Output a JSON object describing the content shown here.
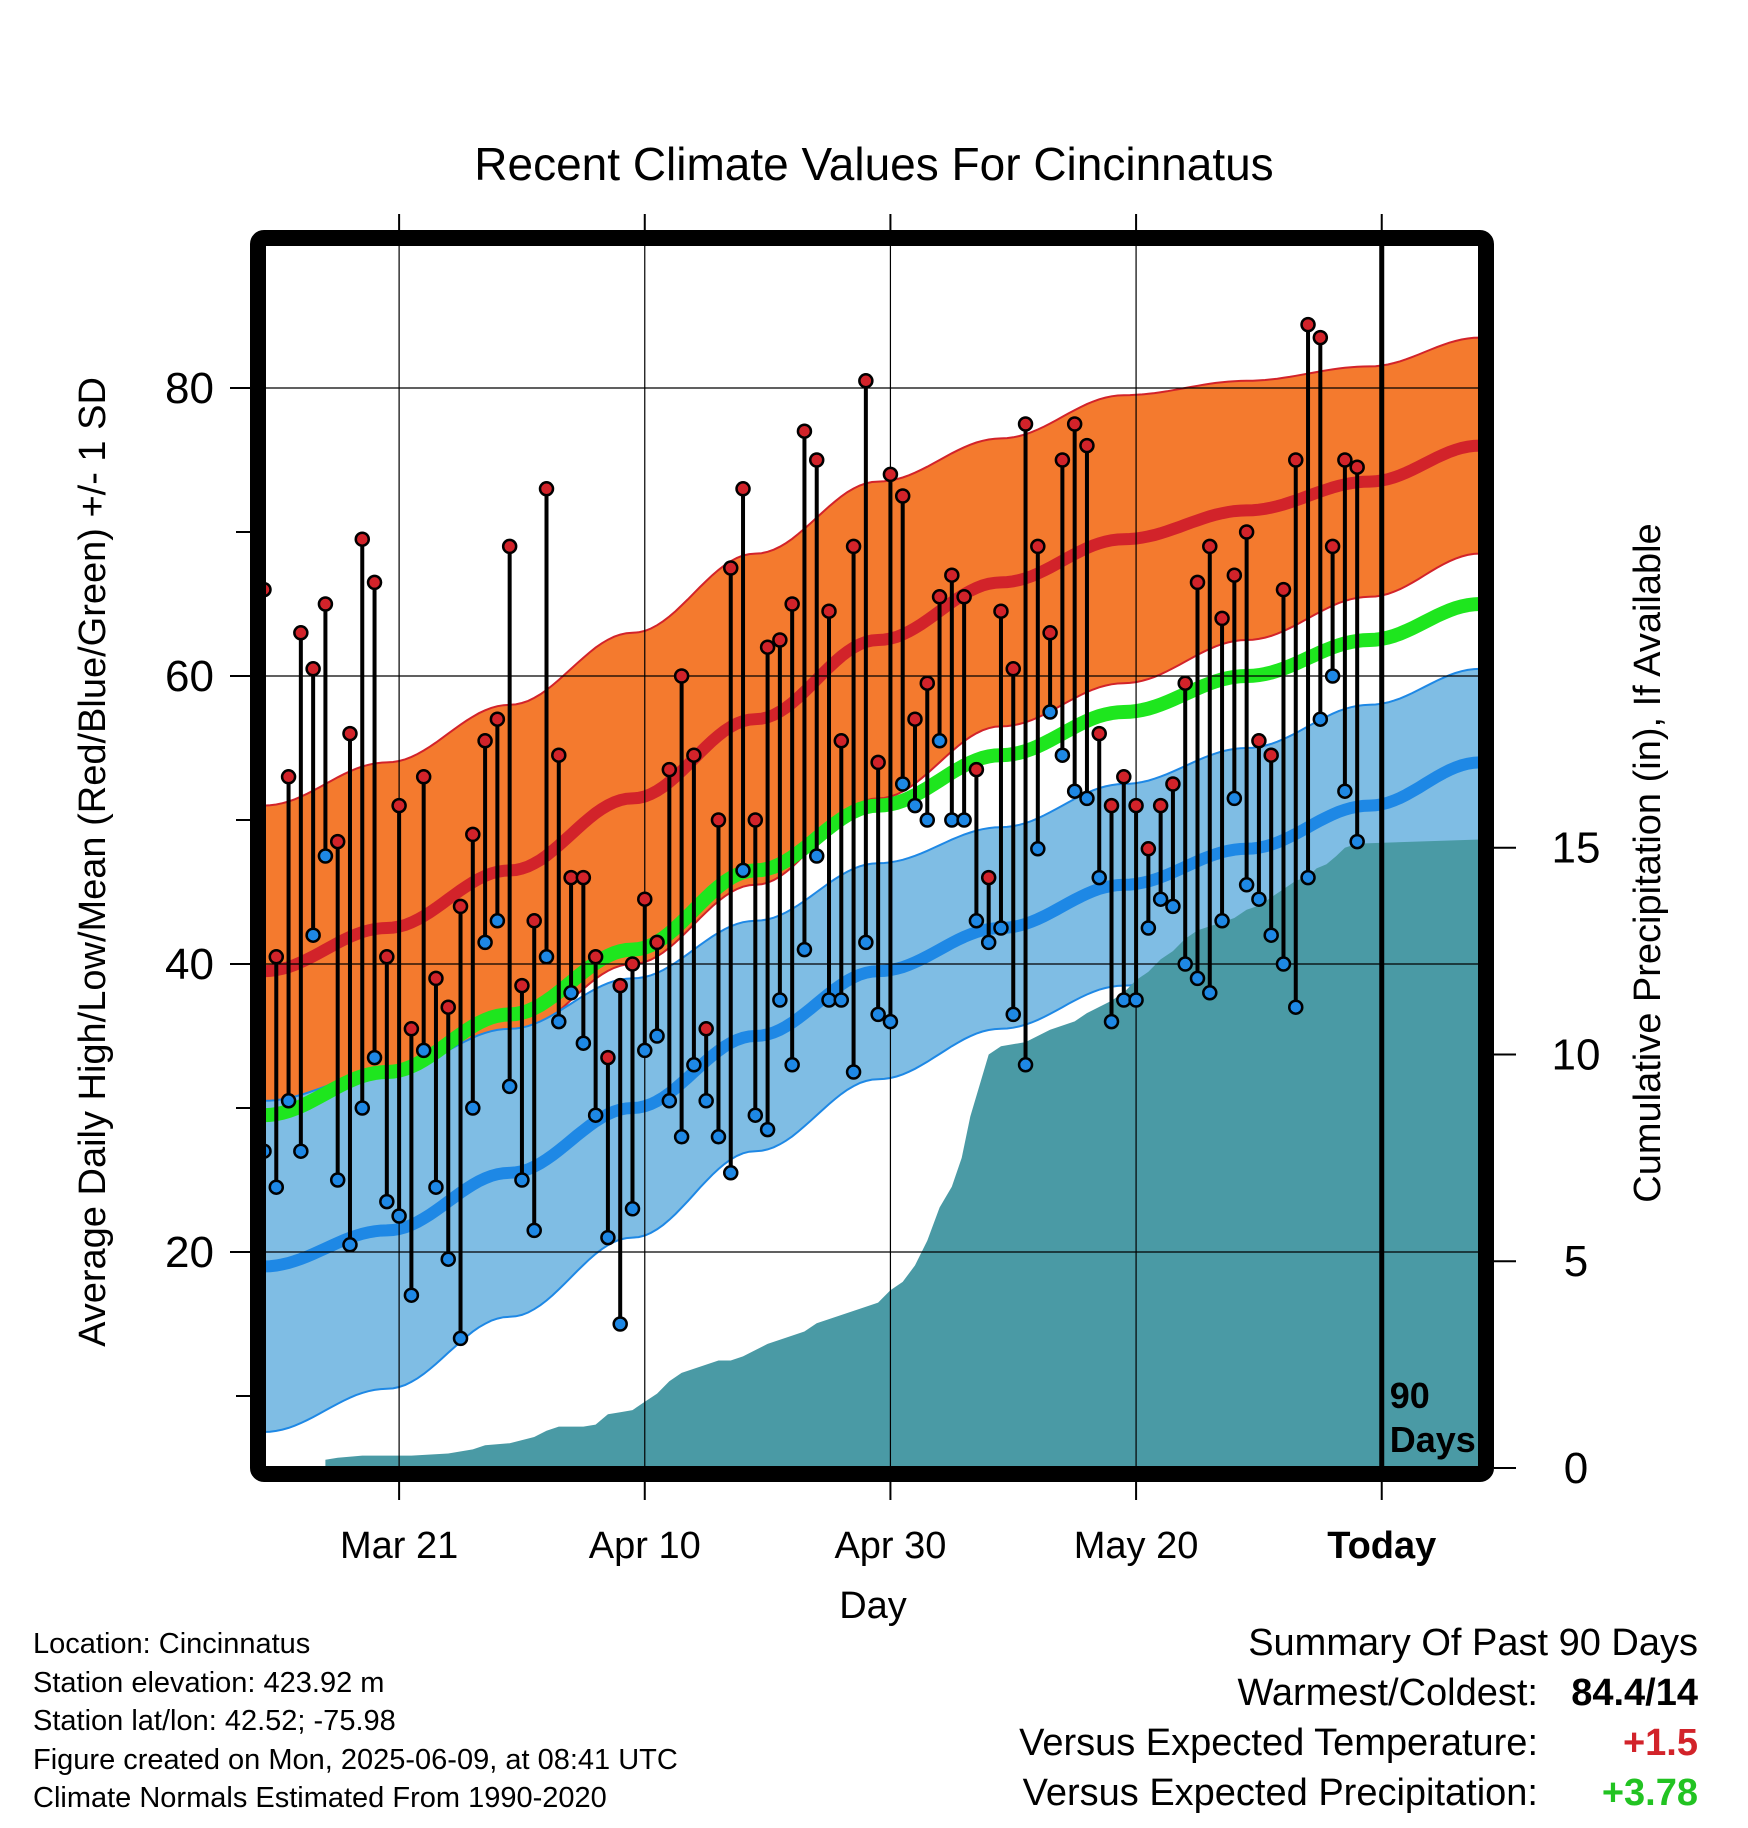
{
  "chart_data": {
    "type": "line",
    "title": "Recent Climate Values For Cincinnatus",
    "xlabel": "Day",
    "ylabel": "Average Daily High/Low/Mean (Red/Blue/Green) +/- 1 SD",
    "y2label": "Cumulative Precipitation (in), If Available",
    "ylim": [
      5,
      90
    ],
    "y2lim": [
      0,
      29.6
    ],
    "xlim": [
      0,
      99
    ],
    "x_ticks": [
      {
        "day": 11,
        "label": "Mar 21"
      },
      {
        "day": 31,
        "label": "Apr 10"
      },
      {
        "day": 51,
        "label": "Apr 30"
      },
      {
        "day": 71,
        "label": "May 20"
      },
      {
        "day": 91,
        "label": "Today"
      }
    ],
    "y_ticks": [
      20,
      40,
      60,
      80
    ],
    "y_minor_ticks": [
      10,
      30,
      50,
      70
    ],
    "y2_ticks": [
      0,
      5,
      10,
      15
    ],
    "grid": true,
    "today_marker": {
      "day": 91,
      "label_line1": "90",
      "label_line2": "Days"
    },
    "normal_high": {
      "days": [
        0,
        10,
        20,
        30,
        40,
        50,
        60,
        70,
        80,
        90,
        99
      ],
      "mean": [
        39.5,
        42.5,
        46.5,
        51.5,
        57,
        62.5,
        66.5,
        69.5,
        71.5,
        73.5,
        76
      ],
      "sd": [
        11.5,
        11.5,
        11.5,
        11.5,
        11.5,
        11,
        10,
        10,
        9,
        8,
        7.5
      ]
    },
    "normal_low": {
      "days": [
        0,
        10,
        20,
        30,
        40,
        50,
        60,
        70,
        80,
        90,
        99
      ],
      "mean": [
        19,
        21.5,
        25.5,
        30,
        35,
        39.5,
        42.5,
        45.5,
        48,
        51,
        54
      ],
      "sd": [
        11.5,
        11,
        10,
        9,
        8,
        7.5,
        7,
        7,
        7,
        7,
        6.5
      ]
    },
    "normal_mean": {
      "days": [
        0,
        10,
        20,
        30,
        40,
        50,
        60,
        70,
        80,
        90,
        99
      ],
      "values": [
        29.5,
        32.5,
        36.5,
        41,
        46.5,
        51,
        54.5,
        57.5,
        60,
        62.5,
        65
      ]
    },
    "daily": {
      "start_day": 0,
      "highs": [
        66,
        40.5,
        53,
        63,
        60.5,
        65,
        48.5,
        56,
        69.5,
        66.5,
        40.5,
        51,
        35.5,
        53,
        39,
        37,
        44,
        49,
        55.5,
        57,
        69,
        38.5,
        43,
        73,
        54.5,
        46,
        46,
        40.5,
        33.5,
        38.5,
        40,
        44.5,
        41.5,
        53.5,
        60,
        54.5,
        35.5,
        50,
        67.5,
        73,
        50,
        62,
        62.5,
        65,
        77,
        75,
        64.5,
        55.5,
        69,
        80.5,
        54,
        74,
        72.5,
        57,
        59.5,
        65.5,
        67,
        65.5,
        53.5,
        46,
        64.5,
        60.5,
        77.5,
        69,
        63,
        75,
        77.5,
        76,
        56,
        51,
        53,
        51,
        48,
        51,
        52.5,
        59.5,
        66.5,
        69,
        64,
        67,
        70,
        55.5,
        54.5,
        66,
        75,
        84.4,
        83.5,
        69,
        75,
        74.5
      ],
      "lows": [
        27,
        24.5,
        30.5,
        27,
        42,
        47.5,
        25,
        20.5,
        30,
        33.5,
        23.5,
        22.5,
        17,
        34,
        24.5,
        19.5,
        14,
        30,
        41.5,
        43,
        31.5,
        25,
        21.5,
        40.5,
        36,
        38,
        34.5,
        29.5,
        21,
        15,
        23,
        34,
        35,
        30.5,
        28,
        33,
        30.5,
        28,
        25.5,
        46.5,
        29.5,
        28.5,
        37.5,
        33,
        41,
        47.5,
        37.5,
        37.5,
        32.5,
        41.5,
        36.5,
        36,
        52.5,
        51,
        50,
        55.5,
        50,
        50,
        43,
        41.5,
        42.5,
        36.5,
        33,
        48,
        57.5,
        54.5,
        52,
        51.5,
        46,
        36,
        37.5,
        37.5,
        42.5,
        44.5,
        44,
        40,
        39,
        38,
        43,
        51.5,
        45.5,
        44.5,
        42,
        40,
        37,
        46,
        57,
        60,
        52,
        48.5
      ]
    },
    "precip": {
      "days": [
        5,
        6,
        8,
        12,
        15,
        17,
        18,
        20,
        22,
        23,
        24,
        25,
        26,
        27,
        28,
        29,
        30,
        31,
        32,
        33,
        34,
        35,
        36,
        37,
        38,
        39,
        40,
        41,
        42,
        44,
        45,
        46,
        48,
        49,
        50,
        51,
        52,
        53,
        54,
        55,
        56,
        56.8,
        57.5,
        59,
        60,
        62,
        64,
        66,
        67,
        69,
        70,
        71,
        72,
        73,
        74,
        75,
        76,
        77,
        78,
        79,
        80,
        81,
        82,
        83,
        84,
        85,
        85.7,
        86.5,
        87.3,
        88,
        89,
        99
      ],
      "values": [
        0.2,
        0.25,
        0.3,
        0.3,
        0.35,
        0.45,
        0.55,
        0.6,
        0.75,
        0.9,
        1.0,
        1.0,
        1.0,
        1.05,
        1.3,
        1.35,
        1.4,
        1.6,
        1.8,
        2.1,
        2.3,
        2.4,
        2.5,
        2.6,
        2.6,
        2.7,
        2.85,
        3.0,
        3.1,
        3.3,
        3.5,
        3.6,
        3.8,
        3.9,
        4.0,
        4.3,
        4.5,
        4.9,
        5.5,
        6.3,
        6.8,
        7.5,
        8.5,
        10.0,
        10.2,
        10.3,
        10.6,
        10.8,
        11.0,
        11.3,
        11.5,
        11.8,
        12.0,
        12.3,
        12.5,
        12.8,
        13.0,
        13.1,
        13.2,
        13.3,
        13.5,
        13.6,
        13.8,
        14.0,
        14.2,
        14.3,
        14.5,
        14.6,
        14.8,
        15.0,
        15.1,
        15.2
      ]
    },
    "colors": {
      "high_band": "#F47A2E",
      "high_line": "#D2232A",
      "low_band": "#7FBDE4",
      "low_line": "#1E88E5",
      "mean_line": "#1EE61E",
      "precip": "#4A9AA5",
      "high_dot": "#D2232A",
      "low_dot": "#1E88E5"
    }
  },
  "info": {
    "location": "Location: Cincinnatus",
    "elevation": "Station elevation: 423.92 m",
    "latlon": "Station lat/lon: 42.52; -75.98",
    "created": "Figure created on Mon, 2025-06-09, at 08:41 UTC",
    "normals": "Climate Normals Estimated From 1990-2020"
  },
  "summary": {
    "title": "Summary Of Past 90 Days",
    "warm_cold_label": "Warmest/Coldest:",
    "warm_cold_value": "84.4/14",
    "temp_label": "Versus Expected Temperature:",
    "temp_value": "+1.5",
    "temp_color": "#D2232A",
    "precip_label": "Versus Expected Precipitation:",
    "precip_value": "+3.78",
    "precip_color": "#22C322"
  }
}
